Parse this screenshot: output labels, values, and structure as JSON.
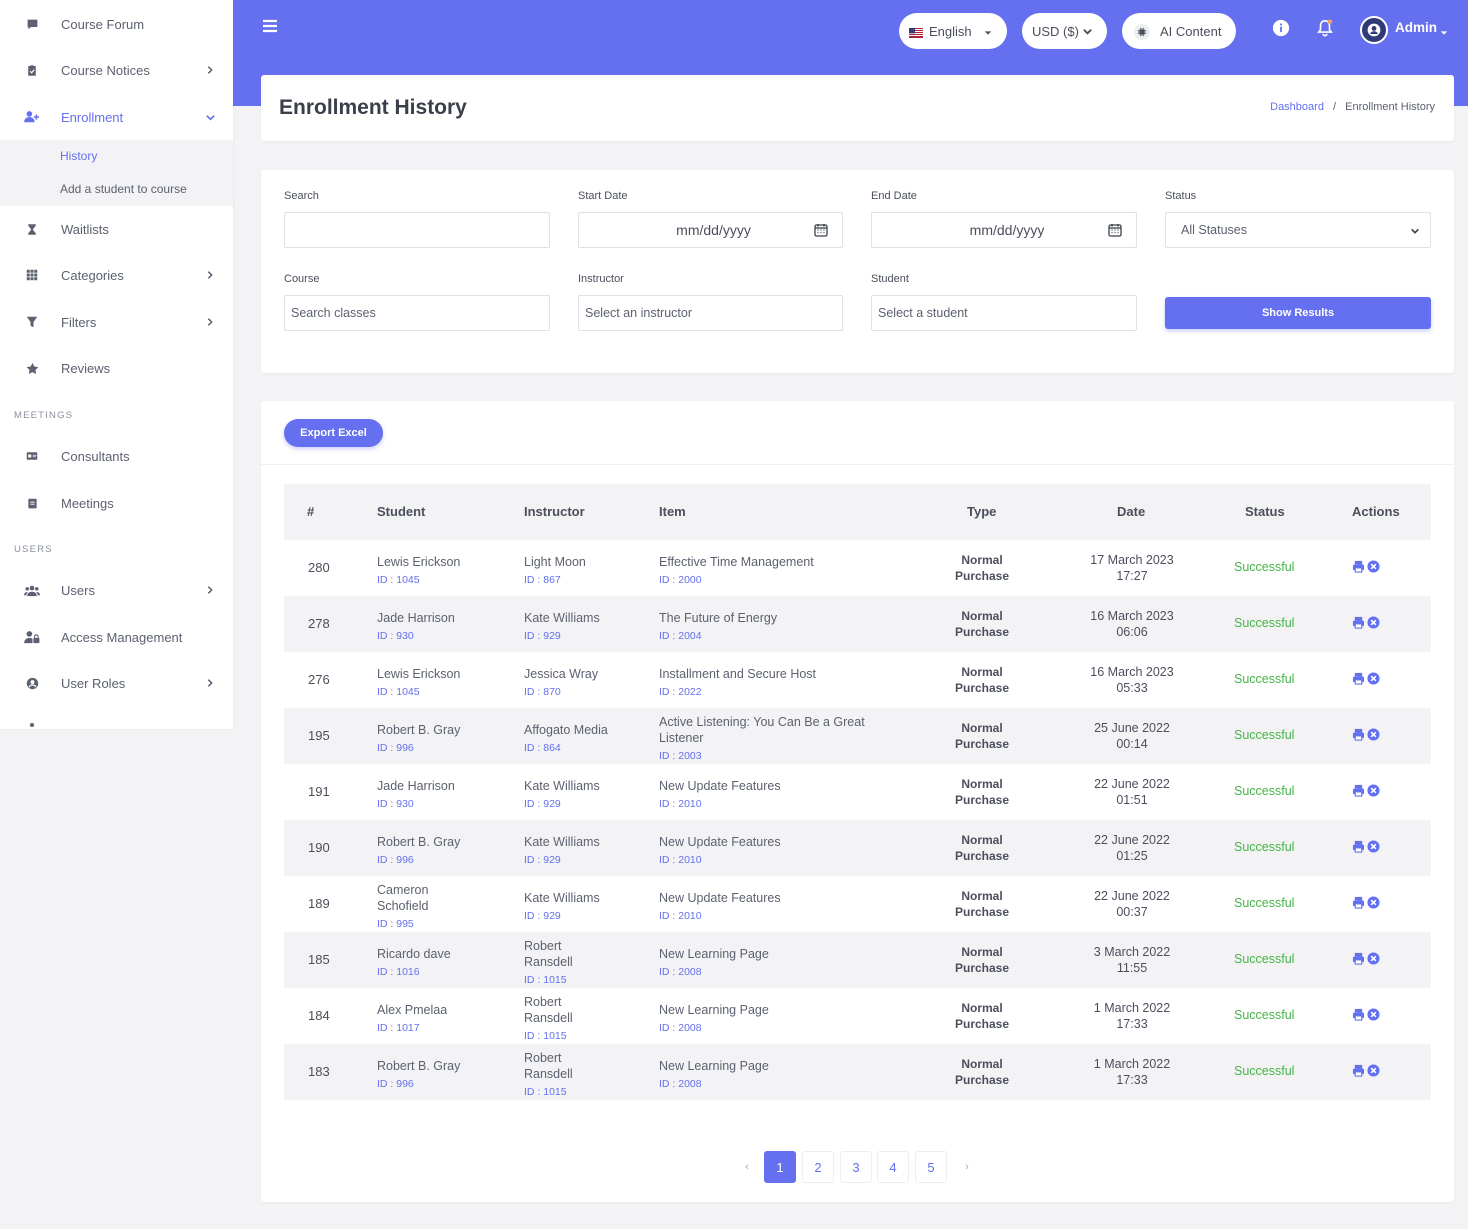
{
  "sidebar": {
    "items_top": [
      {
        "label": "Course Forum",
        "icon": "comment-icon"
      },
      {
        "label": "Course Notices",
        "icon": "clipboard-icon"
      },
      {
        "label": "Enrollment",
        "icon": "user-plus-icon"
      }
    ],
    "enrollment_sub": [
      "History",
      "Add a student to course"
    ],
    "items_mid": [
      {
        "label": "Waitlists",
        "icon": "hourglass-icon"
      },
      {
        "label": "Categories",
        "icon": "grid-icon"
      },
      {
        "label": "Filters",
        "icon": "filter-icon"
      },
      {
        "label": "Reviews",
        "icon": "star-icon"
      }
    ],
    "section_meetings": "MEETINGS",
    "items_meetings": [
      {
        "label": "Consultants",
        "icon": "id-card-icon"
      },
      {
        "label": "Meetings",
        "icon": "calendar-note-icon"
      }
    ],
    "section_users": "USERS",
    "items_users": [
      {
        "label": "Users",
        "icon": "users-icon"
      },
      {
        "label": "Access Management",
        "icon": "user-lock-icon"
      },
      {
        "label": "User Roles",
        "icon": "user-circle-icon"
      }
    ]
  },
  "topbar": {
    "language": "English",
    "currency": "USD ($)",
    "ai": "AI Content",
    "user": "Admin"
  },
  "header": {
    "title": "Enrollment History",
    "breadcrumb_home": "Dashboard",
    "breadcrumb_sep": "/",
    "breadcrumb_current": "Enrollment History"
  },
  "filters": {
    "search_label": "Search",
    "start_label": "Start Date",
    "end_label": "End Date",
    "status_label": "Status",
    "date_placeholder": "mm/dd/yyyy",
    "status_value": "All Statuses",
    "course_label": "Course",
    "course_placeholder": "Search classes",
    "instructor_label": "Instructor",
    "instructor_placeholder": "Select an instructor",
    "student_label": "Student",
    "student_placeholder": "Select a student",
    "show_button": "Show Results"
  },
  "export_button": "Export Excel",
  "table": {
    "headers": [
      "#",
      "Student",
      "Instructor",
      "Item",
      "Type",
      "Date",
      "Status",
      "Actions"
    ],
    "rows": [
      {
        "num": "280",
        "student": "Lewis Erickson",
        "student_id": "ID : 1045",
        "instructor": "Light Moon",
        "instructor_id": "ID : 867",
        "item": "Effective Time Management",
        "item_id": "ID : 2000",
        "type1": "Normal",
        "type2": "Purchase",
        "date1": "17 March 2023",
        "date2": "17:27",
        "status": "Successful"
      },
      {
        "num": "278",
        "student": "Jade Harrison",
        "student_id": "ID : 930",
        "instructor": "Kate Williams",
        "instructor_id": "ID : 929",
        "item": "The Future of Energy",
        "item_id": "ID : 2004",
        "type1": "Normal",
        "type2": "Purchase",
        "date1": "16 March 2023",
        "date2": "06:06",
        "status": "Successful"
      },
      {
        "num": "276",
        "student": "Lewis Erickson",
        "student_id": "ID : 1045",
        "instructor": "Jessica Wray",
        "instructor_id": "ID : 870",
        "item": "Installment and Secure Host",
        "item_id": "ID : 2022",
        "type1": "Normal",
        "type2": "Purchase",
        "date1": "16 March 2023",
        "date2": "05:33",
        "status": "Successful"
      },
      {
        "num": "195",
        "student": "Robert B. Gray",
        "student_id": "ID : 996",
        "instructor": "Affogato Media",
        "instructor_id": "ID : 864",
        "item": "Active Listening: You Can Be a Great Listener",
        "item_id": "ID : 2003",
        "type1": "Normal",
        "type2": "Purchase",
        "date1": "25 June 2022",
        "date2": "00:14",
        "status": "Successful"
      },
      {
        "num": "191",
        "student": "Jade Harrison",
        "student_id": "ID : 930",
        "instructor": "Kate Williams",
        "instructor_id": "ID : 929",
        "item": "New Update Features",
        "item_id": "ID : 2010",
        "type1": "Normal",
        "type2": "Purchase",
        "date1": "22 June 2022",
        "date2": "01:51",
        "status": "Successful"
      },
      {
        "num": "190",
        "student": "Robert B. Gray",
        "student_id": "ID : 996",
        "instructor": "Kate Williams",
        "instructor_id": "ID : 929",
        "item": "New Update Features",
        "item_id": "ID : 2010",
        "type1": "Normal",
        "type2": "Purchase",
        "date1": "22 June 2022",
        "date2": "01:25",
        "status": "Successful"
      },
      {
        "num": "189",
        "student": "Cameron Schofield",
        "student_id": "ID : 995",
        "instructor": "Kate Williams",
        "instructor_id": "ID : 929",
        "item": "New Update Features",
        "item_id": "ID : 2010",
        "type1": "Normal",
        "type2": "Purchase",
        "date1": "22 June 2022",
        "date2": "00:37",
        "status": "Successful"
      },
      {
        "num": "185",
        "student": "Ricardo dave",
        "student_id": "ID : 1016",
        "instructor": "Robert Ransdell",
        "instructor_id": "ID : 1015",
        "item": "New Learning Page",
        "item_id": "ID : 2008",
        "type1": "Normal",
        "type2": "Purchase",
        "date1": "3 March 2022",
        "date2": "11:55",
        "status": "Successful"
      },
      {
        "num": "184",
        "student": "Alex Pmelaa",
        "student_id": "ID : 1017",
        "instructor": "Robert Ransdell",
        "instructor_id": "ID : 1015",
        "item": "New Learning Page",
        "item_id": "ID : 2008",
        "type1": "Normal",
        "type2": "Purchase",
        "date1": "1 March 2022",
        "date2": "17:33",
        "status": "Successful"
      },
      {
        "num": "183",
        "student": "Robert B. Gray",
        "student_id": "ID : 996",
        "instructor": "Robert Ransdell",
        "instructor_id": "ID : 1015",
        "item": "New Learning Page",
        "item_id": "ID : 2008",
        "type1": "Normal",
        "type2": "Purchase",
        "date1": "1 March 2022",
        "date2": "17:33",
        "status": "Successful"
      }
    ]
  },
  "pagination": {
    "prev": "‹",
    "pages": [
      "1",
      "2",
      "3",
      "4",
      "5"
    ],
    "next": "›",
    "active": "1"
  },
  "colors": {
    "accent": "#6470ef",
    "success": "#43b548"
  }
}
